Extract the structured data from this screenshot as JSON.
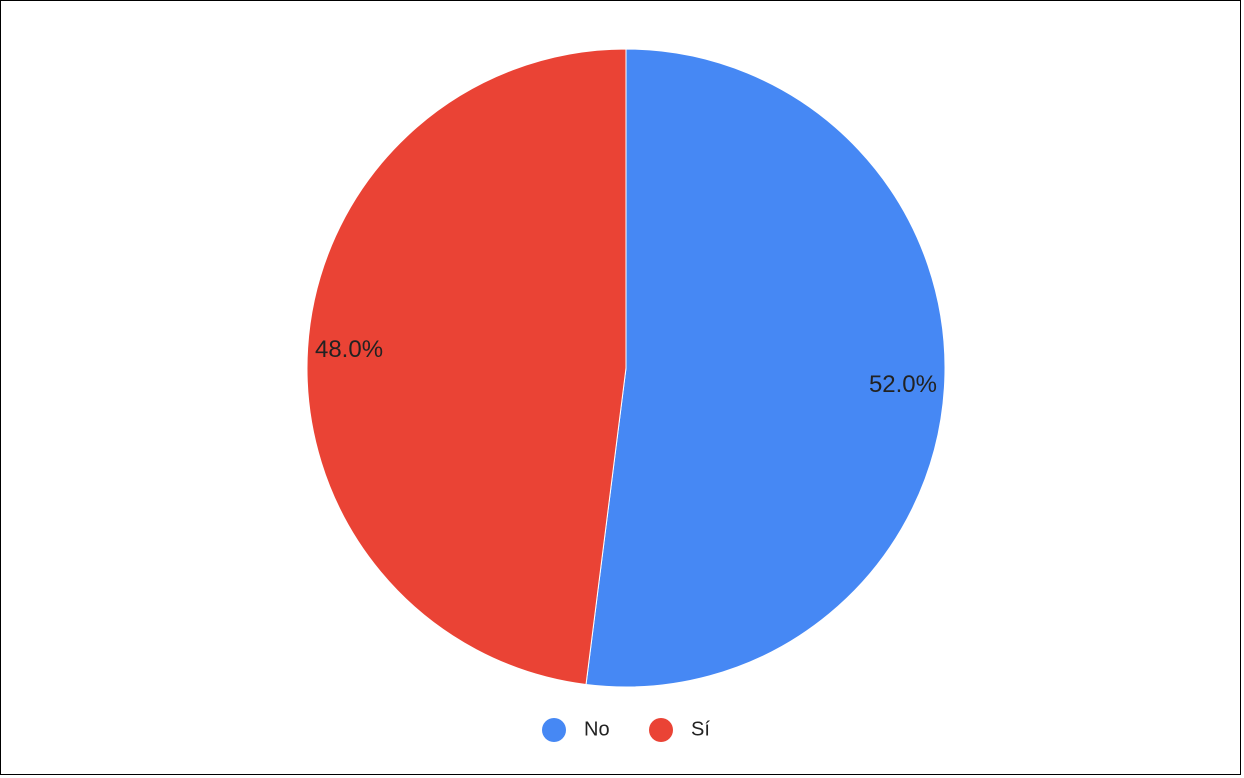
{
  "chart_data": {
    "type": "pie",
    "categories": [
      "No",
      "Sí"
    ],
    "values": [
      52.0,
      48.0
    ],
    "slice_labels": [
      "52.0%",
      "48.0%"
    ],
    "colors": [
      "#4688f4",
      "#ea4335"
    ],
    "legend_position": "bottom",
    "start_angle": "12 o'clock",
    "direction": "clockwise"
  }
}
